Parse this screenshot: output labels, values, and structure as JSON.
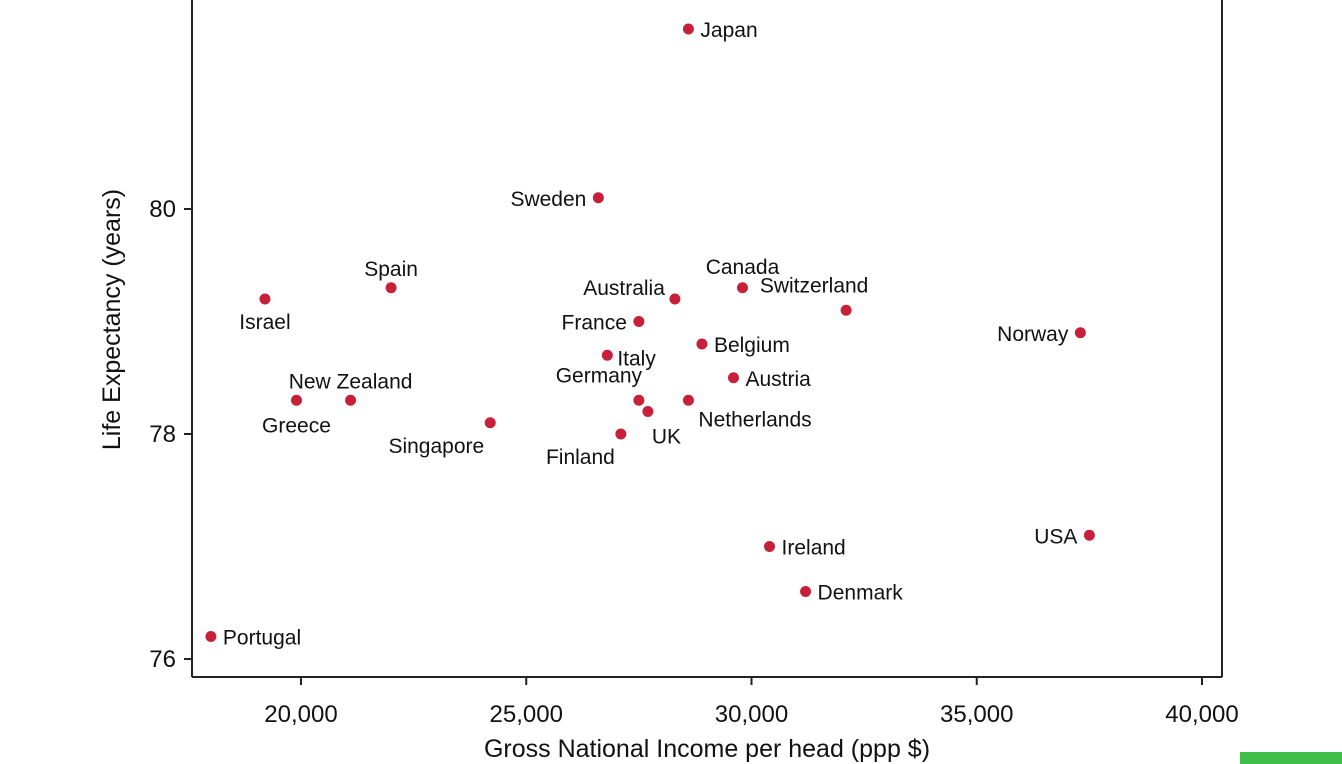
{
  "chart_data": {
    "type": "scatter",
    "title": "",
    "xlabel": "Gross National Income per head (ppp $)",
    "ylabel": "Life Expectancy (years)",
    "xlim": [
      17600,
      40400
    ],
    "ylim": [
      75.85,
      81.9
    ],
    "x_ticks": [
      20000,
      25000,
      30000,
      35000,
      40000
    ],
    "x_tick_labels": [
      "20,000",
      "25,000",
      "30,000",
      "35,000",
      "40,000"
    ],
    "y_ticks": [
      76,
      78,
      80
    ],
    "y_tick_labels": [
      "76",
      "78",
      "80"
    ],
    "marker_color": "#c8203a",
    "grid": false,
    "points": [
      {
        "label": "Japan",
        "x": 28600,
        "y": 81.6,
        "pos": "right"
      },
      {
        "label": "Sweden",
        "x": 26600,
        "y": 80.1,
        "pos": "left"
      },
      {
        "label": "Spain",
        "x": 22000,
        "y": 79.3,
        "pos": "above"
      },
      {
        "label": "Israel",
        "x": 19200,
        "y": 79.2,
        "pos": "below"
      },
      {
        "label": "Australia",
        "x": 28300,
        "y": 79.2,
        "pos": "left-up"
      },
      {
        "label": "Canada",
        "x": 29800,
        "y": 79.3,
        "pos": "above"
      },
      {
        "label": "Switzerland",
        "x": 32100,
        "y": 79.1,
        "pos": "above-left"
      },
      {
        "label": "France",
        "x": 27500,
        "y": 79.0,
        "pos": "left"
      },
      {
        "label": "Norway",
        "x": 37300,
        "y": 78.9,
        "pos": "left"
      },
      {
        "label": "Belgium",
        "x": 28900,
        "y": 78.8,
        "pos": "right"
      },
      {
        "label": "Italy",
        "x": 26800,
        "y": 78.7,
        "pos": "right-down"
      },
      {
        "label": "Austria",
        "x": 29600,
        "y": 78.5,
        "pos": "right"
      },
      {
        "label": "New Zealand",
        "x": 21100,
        "y": 78.3,
        "pos": "above"
      },
      {
        "label": "Greece",
        "x": 19900,
        "y": 78.3,
        "pos": "below"
      },
      {
        "label": "Germany",
        "x": 27500,
        "y": 78.3,
        "pos": "above-left"
      },
      {
        "label": "Netherlands",
        "x": 28600,
        "y": 78.3,
        "pos": "below-right"
      },
      {
        "label": "UK",
        "x": 27700,
        "y": 78.2,
        "pos": "below-right"
      },
      {
        "label": "Singapore",
        "x": 24200,
        "y": 78.1,
        "pos": "below-left"
      },
      {
        "label": "Finland",
        "x": 27100,
        "y": 78.0,
        "pos": "below-left"
      },
      {
        "label": "Ireland",
        "x": 30400,
        "y": 77.0,
        "pos": "right"
      },
      {
        "label": "USA",
        "x": 37500,
        "y": 77.1,
        "pos": "left"
      },
      {
        "label": "Denmark",
        "x": 31200,
        "y": 76.6,
        "pos": "right"
      },
      {
        "label": "Portugal",
        "x": 18000,
        "y": 76.2,
        "pos": "right"
      }
    ]
  }
}
